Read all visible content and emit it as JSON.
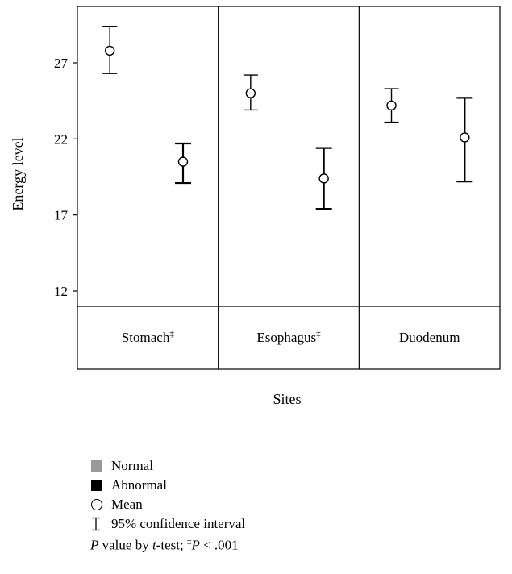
{
  "chart_data": {
    "type": "scatter",
    "subtype": "error-bar",
    "ylabel": "Energy level",
    "xlabel": "Sites",
    "ylim": [
      10,
      30
    ],
    "yticks": [
      12,
      17,
      22,
      27
    ],
    "categories": [
      {
        "label": "Stomach",
        "mark": "‡"
      },
      {
        "label": "Esophagus",
        "mark": "‡"
      },
      {
        "label": "Duodenum",
        "mark": ""
      }
    ],
    "series": [
      {
        "name": "Normal",
        "color": "#999999",
        "means": [
          27.8,
          25.0,
          24.2
        ],
        "ci_lower": [
          26.3,
          23.9,
          23.1
        ],
        "ci_upper": [
          29.4,
          26.2,
          25.3
        ]
      },
      {
        "name": "Abnormal",
        "color": "#000000",
        "means": [
          20.5,
          19.4,
          22.1
        ],
        "ci_lower": [
          19.1,
          17.4,
          19.2
        ],
        "ci_upper": [
          21.7,
          21.4,
          24.7
        ]
      }
    ],
    "grid": false,
    "legend_position": "bottom-left"
  },
  "legend": {
    "items": [
      {
        "label": "Normal",
        "symbol": "square",
        "color": "#999999"
      },
      {
        "label": "Abnormal",
        "symbol": "square",
        "color": "#000000"
      },
      {
        "label": "Mean",
        "symbol": "circle"
      },
      {
        "label": "95% confidence interval",
        "symbol": "error-bar"
      }
    ],
    "footnote": {
      "p": "P",
      "text1": " value by ",
      "t": "t",
      "text2": "-test; ",
      "dagger": "‡",
      "p2": "P",
      "text3": " < .001"
    }
  }
}
